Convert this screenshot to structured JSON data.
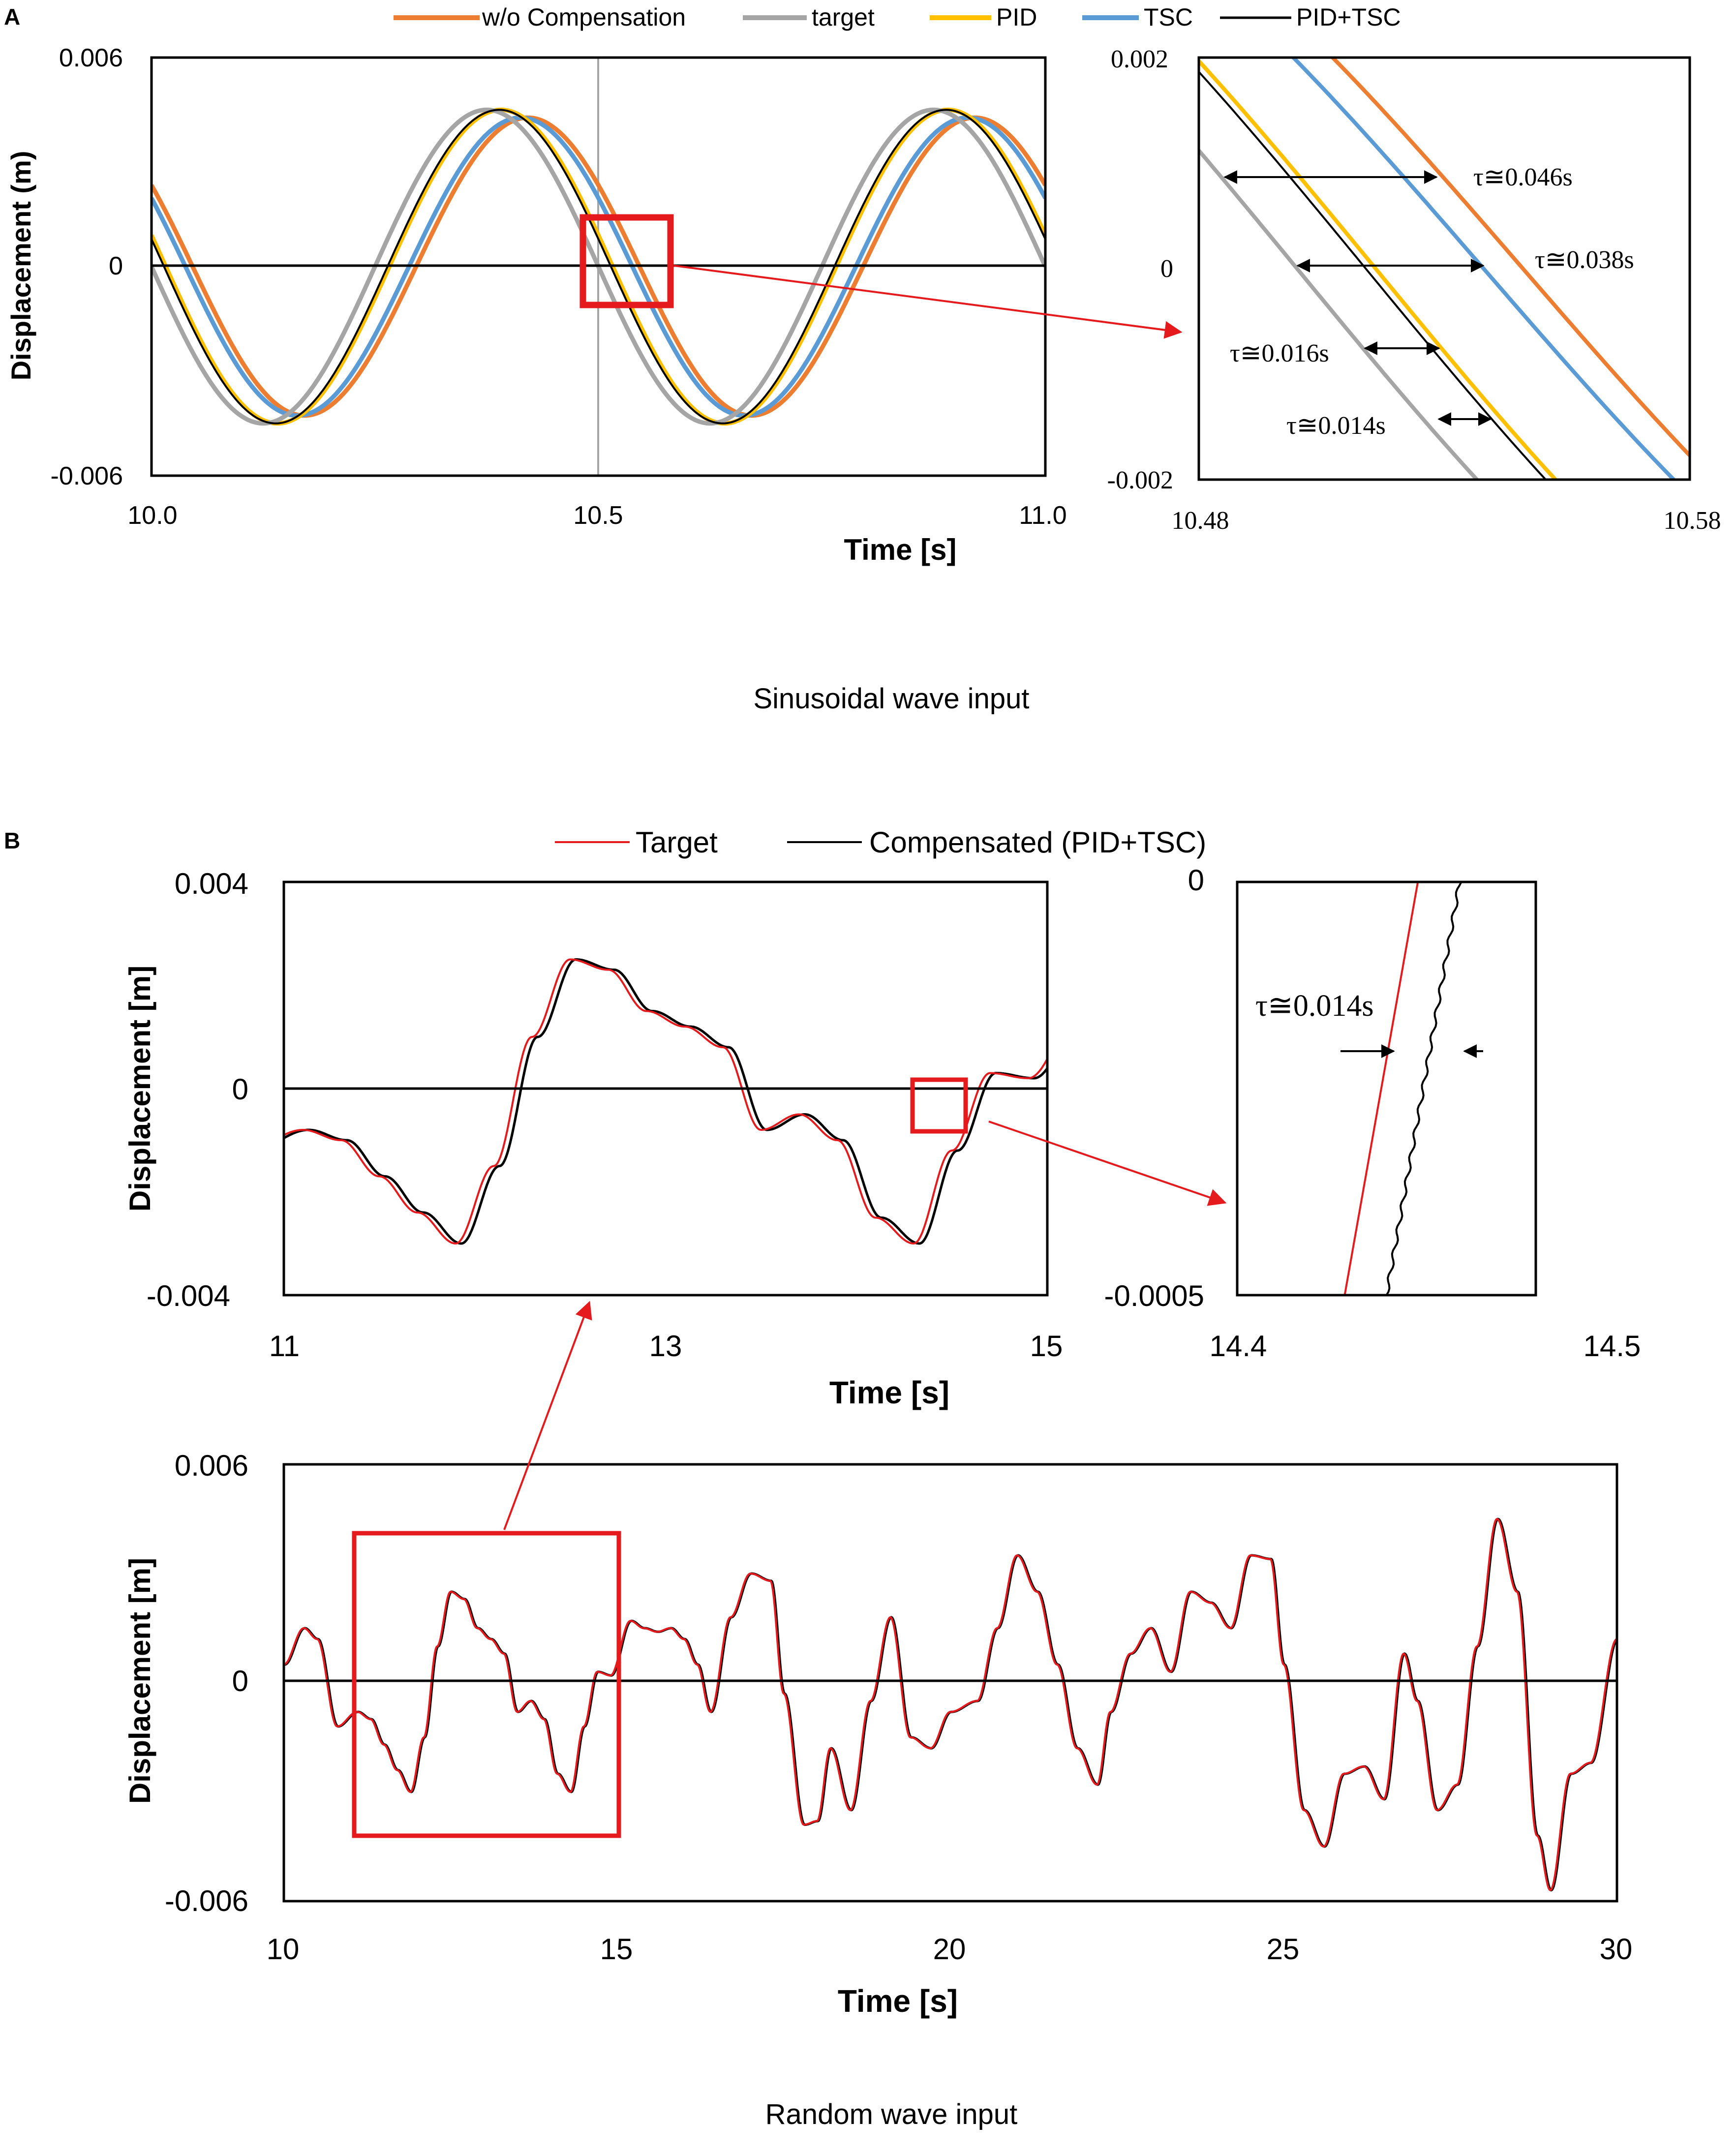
{
  "panels": {
    "A": {
      "letter": "A",
      "caption": "Sinusoidal wave input"
    },
    "B": {
      "letter": "B",
      "caption": "Random wave input"
    }
  },
  "colors": {
    "wo": "#ED7D31",
    "target": "#A5A5A5",
    "pid": "#FFC000",
    "tsc": "#5B9BD5",
    "pidtsc": "#000000",
    "red": "#E41A1C"
  },
  "chart_data": [
    {
      "id": "A-main",
      "type": "line",
      "xlabel": "Time [s]",
      "ylabel": "Displacement (m)",
      "xlim": [
        10.0,
        11.0
      ],
      "ylim": [
        -0.006,
        0.006
      ],
      "xticks": [
        "10.0",
        "10.5",
        "11.0"
      ],
      "yticks": [
        "0.006",
        "0",
        "-0.006"
      ],
      "legend": [
        "w/o Compensation",
        "target",
        "PID",
        "TSC",
        "PID+TSC"
      ],
      "wave": {
        "amplitude": 0.0045,
        "frequency_hz": 2.0,
        "zero_crossing_target_s": 10.25
      },
      "series": [
        {
          "name": "w/o Compensation",
          "color_key": "wo",
          "delay_s": 0.046,
          "gain": 0.95
        },
        {
          "name": "TSC",
          "color_key": "tsc",
          "delay_s": 0.038,
          "gain": 0.95
        },
        {
          "name": "PID",
          "color_key": "pid",
          "delay_s": 0.016,
          "gain": 1.0
        },
        {
          "name": "target",
          "color_key": "target",
          "delay_s": 0.0,
          "gain": 1.0
        },
        {
          "name": "PID+TSC",
          "color_key": "pidtsc",
          "delay_s": 0.014,
          "gain": 1.0
        }
      ]
    },
    {
      "id": "A-zoom",
      "type": "line",
      "xlim": [
        10.48,
        10.58
      ],
      "ylim": [
        -0.002,
        0.002
      ],
      "xticks": [
        "10.48",
        "10.58"
      ],
      "yticks": [
        "0.002",
        "0",
        "-0.002"
      ],
      "annotations": [
        "τ≅0.046s",
        "τ≅0.038s",
        "τ≅0.016s",
        "τ≅0.014s"
      ]
    },
    {
      "id": "B-zoom1",
      "type": "line",
      "xlabel": "Time [s]",
      "ylabel": "Displacement [m]",
      "xlim": [
        11,
        15
      ],
      "ylim": [
        -0.004,
        0.004
      ],
      "xticks": [
        "11",
        "13",
        "15"
      ],
      "yticks": [
        "0.004",
        "0",
        "-0.004"
      ],
      "legend": [
        "Target",
        "Compensated (PID+TSC)"
      ]
    },
    {
      "id": "B-zoom2",
      "type": "line",
      "xlim": [
        14.4,
        14.5
      ],
      "ylim": [
        -0.0005,
        0
      ],
      "xticks": [
        "14.4",
        "14.5"
      ],
      "yticks": [
        "0",
        "-0.0005"
      ],
      "annotations": [
        "τ≅0.014s"
      ]
    },
    {
      "id": "B-main",
      "type": "line",
      "xlabel": "Time [s]",
      "ylabel": "Displacement [m]",
      "xlim": [
        10,
        30
      ],
      "ylim": [
        -0.006,
        0.006
      ],
      "xticks": [
        "10",
        "15",
        "20",
        "25",
        "30"
      ],
      "yticks": [
        "0.006",
        "0",
        "-0.006"
      ],
      "delay_s": 0.014,
      "series": [
        {
          "name": "Target",
          "color_key": "red",
          "x": [
            10.0,
            10.3,
            10.5,
            10.8,
            11.1,
            11.3,
            11.5,
            11.7,
            11.9,
            12.1,
            12.3,
            12.5,
            12.7,
            12.9,
            13.1,
            13.3,
            13.5,
            13.7,
            13.9,
            14.1,
            14.3,
            14.5,
            14.7,
            14.9,
            15.2,
            15.4,
            15.6,
            15.8,
            16.0,
            16.2,
            16.4,
            16.7,
            17.0,
            17.3,
            17.5,
            17.8,
            18.0,
            18.2,
            18.5,
            18.8,
            19.1,
            19.4,
            19.7,
            20.0,
            20.4,
            20.7,
            21.0,
            21.3,
            21.6,
            21.9,
            22.2,
            22.4,
            22.7,
            23.0,
            23.3,
            23.6,
            23.9,
            24.2,
            24.5,
            24.8,
            25.0,
            25.3,
            25.6,
            25.9,
            26.2,
            26.5,
            26.8,
            27.0,
            27.3,
            27.6,
            27.9,
            28.2,
            28.5,
            28.8,
            29.0,
            29.3,
            29.6,
            30.0
          ],
          "y": [
            0.0005,
            0.0015,
            0.0012,
            -0.0012,
            -0.0008,
            -0.001,
            -0.0017,
            -0.0024,
            -0.003,
            -0.0015,
            0.001,
            0.0025,
            0.0023,
            0.0015,
            0.0012,
            0.0008,
            -0.0008,
            -0.0005,
            -0.001,
            -0.0025,
            -0.003,
            -0.0012,
            0.0003,
            0.0002,
            0.0017,
            0.0015,
            0.0014,
            0.0015,
            0.0012,
            0.0005,
            -0.0008,
            0.0018,
            0.003,
            0.0028,
            -0.0003,
            -0.0039,
            -0.0038,
            -0.0018,
            -0.0035,
            -0.0005,
            0.0018,
            -0.0015,
            -0.0018,
            -0.0008,
            -0.0005,
            0.0015,
            0.0035,
            0.0025,
            0.0005,
            -0.0018,
            -0.0028,
            -0.0008,
            0.0008,
            0.0015,
            0.0003,
            0.0025,
            0.0022,
            0.0015,
            0.0035,
            0.0034,
            0.0005,
            -0.0035,
            -0.0045,
            -0.0025,
            -0.0023,
            -0.0032,
            0.0008,
            -0.0005,
            -0.0035,
            -0.0028,
            0.001,
            0.0045,
            0.0025,
            -0.0042,
            -0.0057,
            -0.0025,
            -0.0022,
            0.0012
          ]
        },
        {
          "name": "Compensated (PID+TSC)",
          "color_key": "pidtsc"
        }
      ]
    }
  ]
}
